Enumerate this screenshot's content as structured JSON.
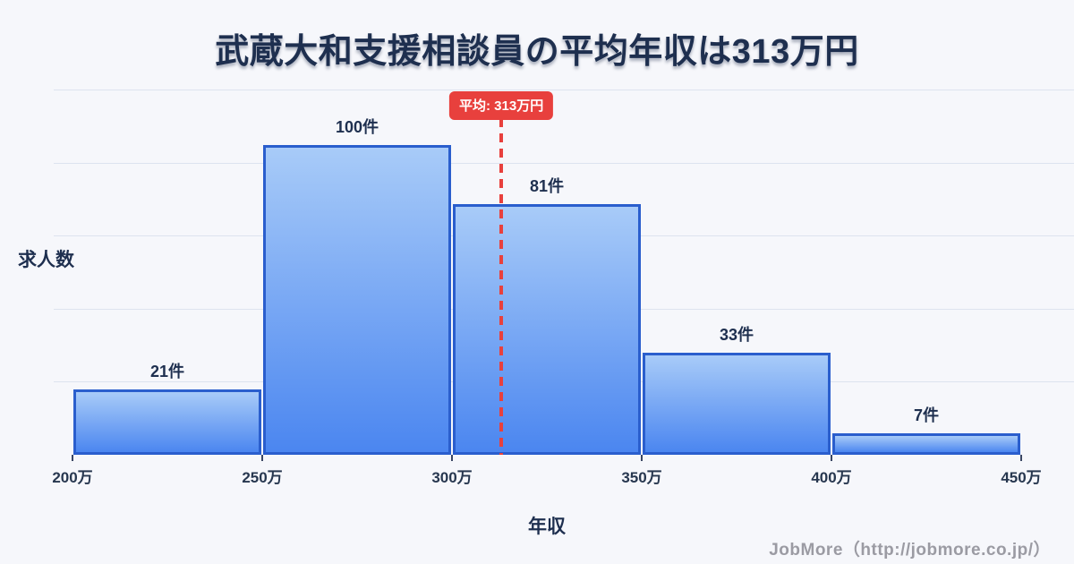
{
  "title": "武蔵大和支援相談員の平均年収は313万円",
  "footer": "JobMore（http://jobmore.co.jp/）",
  "colors": {
    "background": "#f6f7fb",
    "text": "#1e2f4f",
    "grid": "#dde3ef",
    "bar_fill_top": "#a8cbf8",
    "bar_fill_bottom": "#4b86f0",
    "bar_border": "#2a5ecd",
    "average_red": "#e8403d",
    "footer_gray": "#9b9ba3"
  },
  "chart_data": {
    "type": "bar",
    "subtype": "histogram",
    "title": "武蔵大和支援相談員の平均年収は313万円",
    "xlabel": "年収",
    "ylabel": "求人数",
    "bin_edges": [
      200,
      250,
      300,
      350,
      400,
      450
    ],
    "bin_edge_labels": [
      "200万",
      "250万",
      "300万",
      "350万",
      "400万",
      "450万"
    ],
    "values": [
      21,
      100,
      81,
      33,
      7
    ],
    "bar_labels": [
      "21件",
      "100件",
      "81件",
      "33件",
      "7件"
    ],
    "average_value": 313,
    "average_label": "平均: 313万円",
    "x_range": [
      200,
      450
    ],
    "ylim": [
      0,
      118
    ],
    "grid": "horizontal-only",
    "gridline_count": 5,
    "legend": "none"
  }
}
